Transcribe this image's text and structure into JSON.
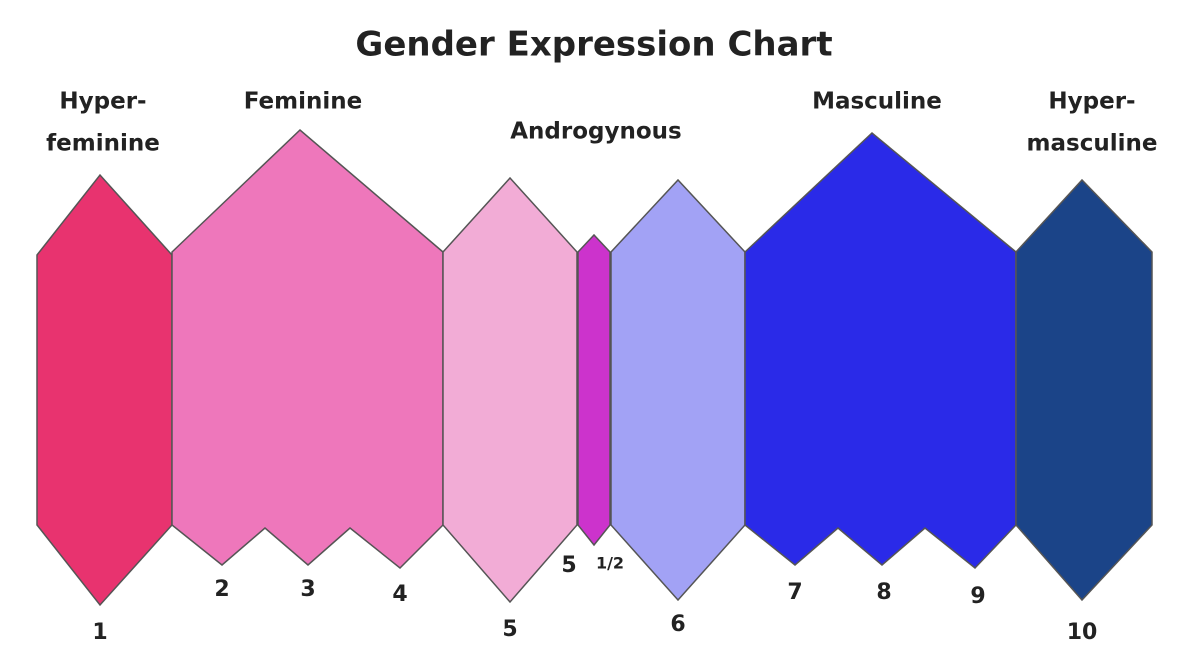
{
  "title": "Gender Expression Chart",
  "groups": [
    {
      "lines": [
        "Hyper-",
        "feminine"
      ]
    },
    {
      "lines": [
        "Feminine"
      ]
    },
    {
      "lines": [
        "Androgynous"
      ]
    },
    {
      "lines": [
        "Masculine"
      ]
    },
    {
      "lines": [
        "Hyper-",
        "masculine"
      ]
    }
  ],
  "numbers": [
    "1",
    "2",
    "3",
    "4",
    "5",
    "5",
    "1/2",
    "6",
    "7",
    "8",
    "9",
    "10"
  ]
}
